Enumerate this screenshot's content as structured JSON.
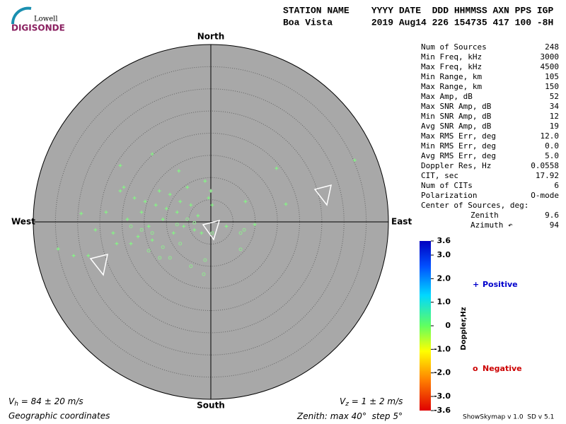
{
  "logo": {
    "top": "Lowell",
    "bottom": "DIGISONDE"
  },
  "header": {
    "line1": "STATION NAME    YYYY DATE  DDD HHMMSS AXN PPS IGP",
    "line2": "Boa Vista       2019 Aug14 226 154735 417 100 -8H"
  },
  "stats": [
    {
      "label": "Num of Sources",
      "value": 248
    },
    {
      "label": "Min Freq, kHz",
      "value": 3000
    },
    {
      "label": "Max Freq, kHz",
      "value": 4500
    },
    {
      "label": "Min Range, km",
      "value": 105
    },
    {
      "label": "Max Range, km",
      "value": 150
    },
    {
      "label": "Max Amp, dB",
      "value": 52
    },
    {
      "label": "Max SNR Amp, dB",
      "value": 34
    },
    {
      "label": "Min SNR Amp, dB",
      "value": 12
    },
    {
      "label": "Avg SNR Amp, dB",
      "value": 19
    },
    {
      "label": "Max RMS Err, deg",
      "value": "12.0"
    },
    {
      "label": "Min RMS Err, deg",
      "value": "0.0"
    },
    {
      "label": "Avg RMS Err, deg",
      "value": "5.0"
    },
    {
      "label": "Doppler Res, Hz",
      "value": 0.0558
    },
    {
      "label": "CIT, sec",
      "value": 17.92
    },
    {
      "label": "Num of CITs",
      "value": 6
    },
    {
      "label": "Polarization",
      "value": "O-mode"
    },
    {
      "label": "Center of Sources, deg:"
    },
    {
      "label": "Zenith",
      "value": 9.6,
      "indent": true
    },
    {
      "label": "Azimuth ↶",
      "value": 94,
      "indent": true
    }
  ],
  "skymap": {
    "directions": {
      "north": "North",
      "south": "South",
      "west": "West",
      "east": "East"
    },
    "positive": {
      "color": "#80ff80",
      "x": [
        32.4,
        14.8,
        16.9,
        7.8,
        0,
        -1.3,
        -7.2,
        -13.2,
        -20.4,
        -29.2,
        -34.4,
        -30.9,
        -27.6,
        -26.0,
        -22.0,
        -19.6,
        -17.2,
        -15.6,
        -14.0,
        -12.4,
        -10.8,
        -9.2,
        -7.6,
        -6.1,
        -4.5,
        -2.9,
        -2.1,
        -0.5,
        -18.8,
        -16.4,
        -14.8,
        -11.6,
        -8.4,
        -5.3,
        -3.7,
        -18.0,
        -13.2,
        -10.0,
        -6.9,
        -23.6,
        -21.2,
        0.3,
        3.5,
        9.9,
        -20.4
      ],
      "y": [
        13.9,
        12.1,
        4.0,
        4.6,
        7.0,
        9.2,
        11.5,
        15.3,
        12.7,
        1.9,
        -6.1,
        -7.6,
        -7.6,
        -1.8,
        -2.5,
        7.8,
        5.4,
        2.2,
        -1.0,
        3.8,
        0.6,
        6.2,
        2.2,
        -1.0,
        3.8,
        1.4,
        -2.5,
        5.4,
        0.6,
        -3.3,
        4.6,
        7.0,
        -2.5,
        7.8,
        -1.8,
        -4.9,
        -4.1,
        3.0,
        4.6,
        2.2,
        -4.9,
        3.8,
        -1.0,
        -0.6,
        7.0
      ]
    },
    "negative": {
      "color": "#90e890",
      "x": [
        -1.6,
        -1.3,
        -4.5,
        -9.2,
        -6.9,
        6.7,
        6.7,
        7.5,
        -14.0,
        -10.8,
        0.3,
        -5.3,
        -3.7,
        -7.6,
        -13.2,
        -15.6,
        -18.0,
        -11.5
      ],
      "y": [
        -11.8,
        -8.6,
        -10.0,
        -8.1,
        -4.9,
        -6.2,
        -2.5,
        -1.8,
        -6.5,
        -5.7,
        -2.5,
        0.6,
        -0.2,
        -0.6,
        -2.5,
        -1.8,
        -1.0,
        -8.1
      ]
    }
  },
  "colorbar": {
    "label": "Doppler,Hz",
    "lim": [
      -3.6,
      3.6
    ],
    "ticks": [
      3.6,
      {
        "value": 3,
        "label": "3.0"
      },
      {
        "value": 2,
        "label": "2.0"
      },
      {
        "value": 1,
        "label": "1.0"
      },
      0,
      {
        "value": -1,
        "label": "-1.0"
      },
      {
        "value": -2,
        "label": "-2.0"
      },
      {
        "value": -3,
        "label": "-3.0"
      },
      -3.6
    ],
    "positive": {
      "symbol": "+",
      "label": "Positive"
    },
    "negative": {
      "symbol": "o",
      "label": "Negative"
    }
  },
  "footer": {
    "vh": {
      "symbol": "V",
      "sub": "h",
      "text": " = 84 ± 20 m/s"
    },
    "vz": {
      "symbol": "V",
      "sub": "z",
      "text": " = 1 ± 2 m/s"
    },
    "coords": "Geographic coordinates",
    "zenith": {
      "label": "Zenith: max ",
      "max": 40,
      "max_unit": "°",
      "step_label": "  step ",
      "step": 5,
      "step_unit": "°"
    },
    "version": "ShowSkymap v 1.0  SD v 5.1"
  }
}
